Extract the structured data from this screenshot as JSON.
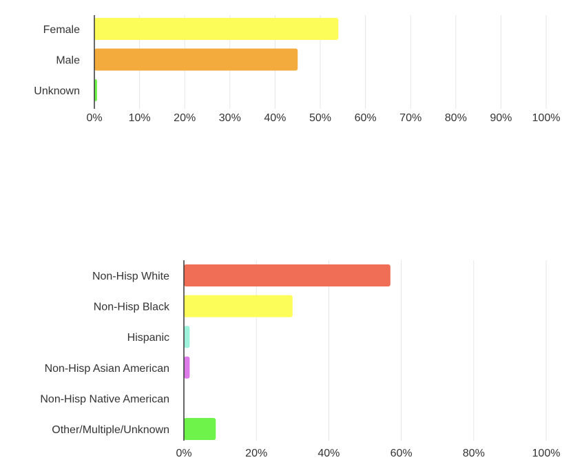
{
  "chart_data": [
    {
      "type": "bar",
      "orientation": "horizontal",
      "categories": [
        "Female",
        "Male",
        "Unknown"
      ],
      "values": [
        54,
        45,
        0.6
      ],
      "colors": [
        "#fdfd5a",
        "#f3ab3e",
        "#6ef34a"
      ],
      "xlim": [
        0,
        100
      ],
      "ticks": [
        "0%",
        "10%",
        "20%",
        "30%",
        "40%",
        "50%",
        "60%",
        "70%",
        "80%",
        "90%",
        "100%"
      ],
      "tick_values": [
        0,
        10,
        20,
        30,
        40,
        50,
        60,
        70,
        80,
        90,
        100
      ],
      "grid": true
    },
    {
      "type": "bar",
      "orientation": "horizontal",
      "categories": [
        "Non-Hisp White",
        "Non-Hisp Black",
        "Hispanic",
        "Non-Hisp Asian American",
        "Non-Hisp Native American",
        "Other/Multiple/Unknown"
      ],
      "values": [
        57,
        30,
        1.6,
        1.6,
        0,
        8.8
      ],
      "colors": [
        "#ef6e55",
        "#fdfd5a",
        "#9ff3dd",
        "#dd7ce8",
        "#cccccc",
        "#6ef34a"
      ],
      "xlim": [
        0,
        100
      ],
      "ticks": [
        "0%",
        "20%",
        "40%",
        "60%",
        "80%",
        "100%"
      ],
      "tick_values": [
        0,
        20,
        40,
        60,
        80,
        100
      ],
      "grid": true
    }
  ]
}
